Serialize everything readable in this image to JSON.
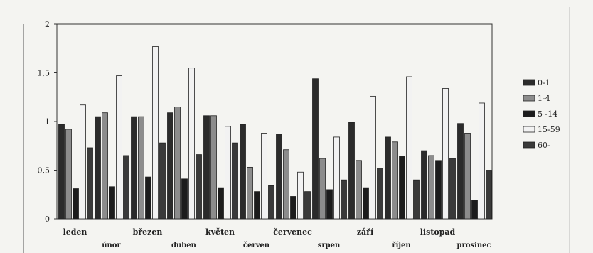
{
  "chart_data": {
    "type": "bar",
    "title": "",
    "xlabel": "",
    "ylabel": "",
    "ylim": [
      0,
      2
    ],
    "yticks": [
      {
        "value": 0,
        "label": "0"
      },
      {
        "value": 0.5,
        "label": "0,5"
      },
      {
        "value": 1,
        "label": "1"
      },
      {
        "value": 1.5,
        "label": "1,5"
      },
      {
        "value": 2,
        "label": "2"
      }
    ],
    "categories": [
      "leden",
      "únor",
      "březen",
      "duben",
      "květen",
      "červen",
      "červenec",
      "srpen",
      "září",
      "říjen",
      "listopad",
      "prosinec"
    ],
    "series": [
      {
        "name": "0-1",
        "color": "#2b2b2b",
        "values": [
          0.97,
          1.05,
          1.05,
          1.09,
          1.06,
          0.97,
          0.87,
          1.44,
          0.99,
          0.84,
          0.7,
          0.98
        ]
      },
      {
        "name": "1-4",
        "color": "#8c8c8c",
        "values": [
          0.92,
          1.09,
          1.05,
          1.15,
          1.06,
          0.53,
          0.71,
          0.62,
          0.6,
          0.79,
          0.65,
          0.88
        ]
      },
      {
        "name": "5 -14",
        "color": "#1c1c1c",
        "values": [
          0.31,
          0.33,
          0.43,
          0.41,
          0.32,
          0.28,
          0.23,
          0.3,
          0.32,
          0.64,
          0.6,
          0.19
        ]
      },
      {
        "name": "15-59",
        "color": "#f2f2f2",
        "values": [
          1.17,
          1.47,
          1.77,
          1.55,
          0.95,
          0.88,
          0.48,
          0.84,
          1.26,
          1.46,
          1.34,
          1.19
        ]
      },
      {
        "name": "60-",
        "color": "#3a3a3a",
        "values": [
          0.73,
          0.65,
          0.78,
          0.66,
          0.78,
          0.34,
          0.28,
          0.4,
          0.52,
          0.4,
          0.62,
          0.5
        ]
      }
    ],
    "grid": false,
    "legend": "right"
  }
}
